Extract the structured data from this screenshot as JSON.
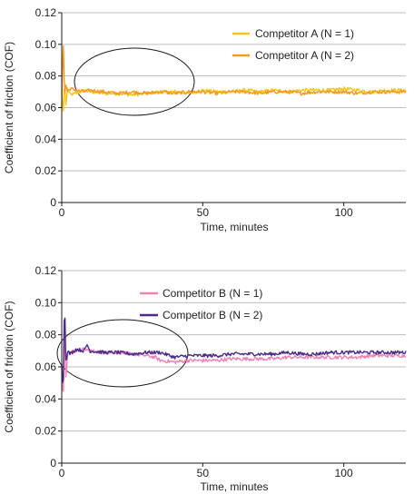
{
  "chart_data": [
    {
      "type": "line",
      "xlabel": "Time, minutes",
      "ylabel": "Coefficient of friction (COF)",
      "xlim": [
        0,
        122
      ],
      "ylim": [
        0,
        0.12
      ],
      "xticks": [
        0,
        50,
        100
      ],
      "xtick_labels": [
        "0",
        "50",
        "100"
      ],
      "yticks": [
        0,
        0.02,
        0.04,
        0.06,
        0.08,
        0.1,
        0.12
      ],
      "ytick_labels": [
        "0",
        "0.02",
        "0.04",
        "0.06",
        "0.08",
        "0.10",
        "0.12"
      ],
      "grid": "horizontal",
      "legend": "top-right",
      "annotation": "ellipse highlighting early run-in period",
      "series": [
        {
          "name": "Competitor A (N = 1)",
          "color": "#f5c518",
          "x": [
            0,
            0.5,
            1,
            1.5,
            2,
            3,
            5,
            8,
            10,
            15,
            20,
            25,
            30,
            35,
            40,
            45,
            50,
            55,
            60,
            65,
            70,
            75,
            80,
            85,
            90,
            95,
            100,
            105,
            110,
            115,
            122
          ],
          "y": [
            0.07,
            0.054,
            0.078,
            0.06,
            0.072,
            0.068,
            0.069,
            0.071,
            0.07,
            0.069,
            0.069,
            0.068,
            0.069,
            0.07,
            0.07,
            0.069,
            0.071,
            0.07,
            0.07,
            0.071,
            0.07,
            0.071,
            0.07,
            0.071,
            0.071,
            0.071,
            0.072,
            0.071,
            0.07,
            0.071,
            0.071
          ]
        },
        {
          "name": "Competitor A (N = 2)",
          "color": "#f39a1f",
          "x": [
            0,
            0.5,
            1,
            1.5,
            2,
            3,
            5,
            8,
            10,
            15,
            20,
            25,
            30,
            35,
            40,
            45,
            50,
            55,
            60,
            65,
            70,
            75,
            80,
            85,
            90,
            95,
            100,
            105,
            110,
            115,
            122
          ],
          "y": [
            0.06,
            0.105,
            0.068,
            0.075,
            0.07,
            0.072,
            0.071,
            0.07,
            0.071,
            0.07,
            0.069,
            0.07,
            0.069,
            0.07,
            0.069,
            0.07,
            0.07,
            0.069,
            0.07,
            0.07,
            0.069,
            0.07,
            0.07,
            0.069,
            0.07,
            0.07,
            0.07,
            0.069,
            0.07,
            0.07,
            0.07
          ]
        }
      ]
    },
    {
      "type": "line",
      "xlabel": "Time, minutes",
      "ylabel": "Coefficient of friction (COF)",
      "xlim": [
        0,
        122
      ],
      "ylim": [
        0,
        0.12
      ],
      "xticks": [
        0,
        50,
        100
      ],
      "xtick_labels": [
        "0",
        "50",
        "100"
      ],
      "yticks": [
        0,
        0.02,
        0.04,
        0.06,
        0.08,
        0.1,
        0.12
      ],
      "ytick_labels": [
        "0",
        "0.02",
        "0.04",
        "0.06",
        "0.08",
        "0.10",
        "0.12"
      ],
      "grid": "horizontal",
      "legend": "top-center",
      "annotation": "ellipse highlighting early run-in period",
      "series": [
        {
          "name": "Competitor B (N = 1)",
          "color": "#ee82b4",
          "x": [
            0,
            0.5,
            1,
            1.5,
            2,
            3,
            5,
            8,
            10,
            15,
            20,
            25,
            30,
            33,
            35,
            40,
            45,
            50,
            55,
            60,
            65,
            70,
            75,
            80,
            85,
            90,
            95,
            100,
            105,
            110,
            115,
            122
          ],
          "y": [
            0.06,
            0.036,
            0.09,
            0.05,
            0.068,
            0.069,
            0.07,
            0.071,
            0.07,
            0.069,
            0.069,
            0.068,
            0.067,
            0.066,
            0.064,
            0.063,
            0.064,
            0.064,
            0.064,
            0.065,
            0.065,
            0.065,
            0.065,
            0.066,
            0.066,
            0.066,
            0.066,
            0.066,
            0.066,
            0.067,
            0.067,
            0.067
          ]
        },
        {
          "name": "Competitor B (N = 2)",
          "color": "#4b2a8a",
          "x": [
            0,
            0.5,
            1,
            1.5,
            2,
            3,
            5,
            8,
            9,
            10,
            15,
            20,
            25,
            30,
            35,
            40,
            45,
            50,
            55,
            60,
            65,
            70,
            75,
            80,
            85,
            90,
            95,
            100,
            105,
            110,
            115,
            122
          ],
          "y": [
            0.062,
            0.042,
            0.105,
            0.06,
            0.07,
            0.068,
            0.071,
            0.07,
            0.074,
            0.07,
            0.069,
            0.069,
            0.068,
            0.069,
            0.069,
            0.066,
            0.067,
            0.067,
            0.067,
            0.068,
            0.068,
            0.068,
            0.068,
            0.069,
            0.068,
            0.068,
            0.069,
            0.069,
            0.069,
            0.069,
            0.069,
            0.069
          ]
        }
      ]
    }
  ]
}
